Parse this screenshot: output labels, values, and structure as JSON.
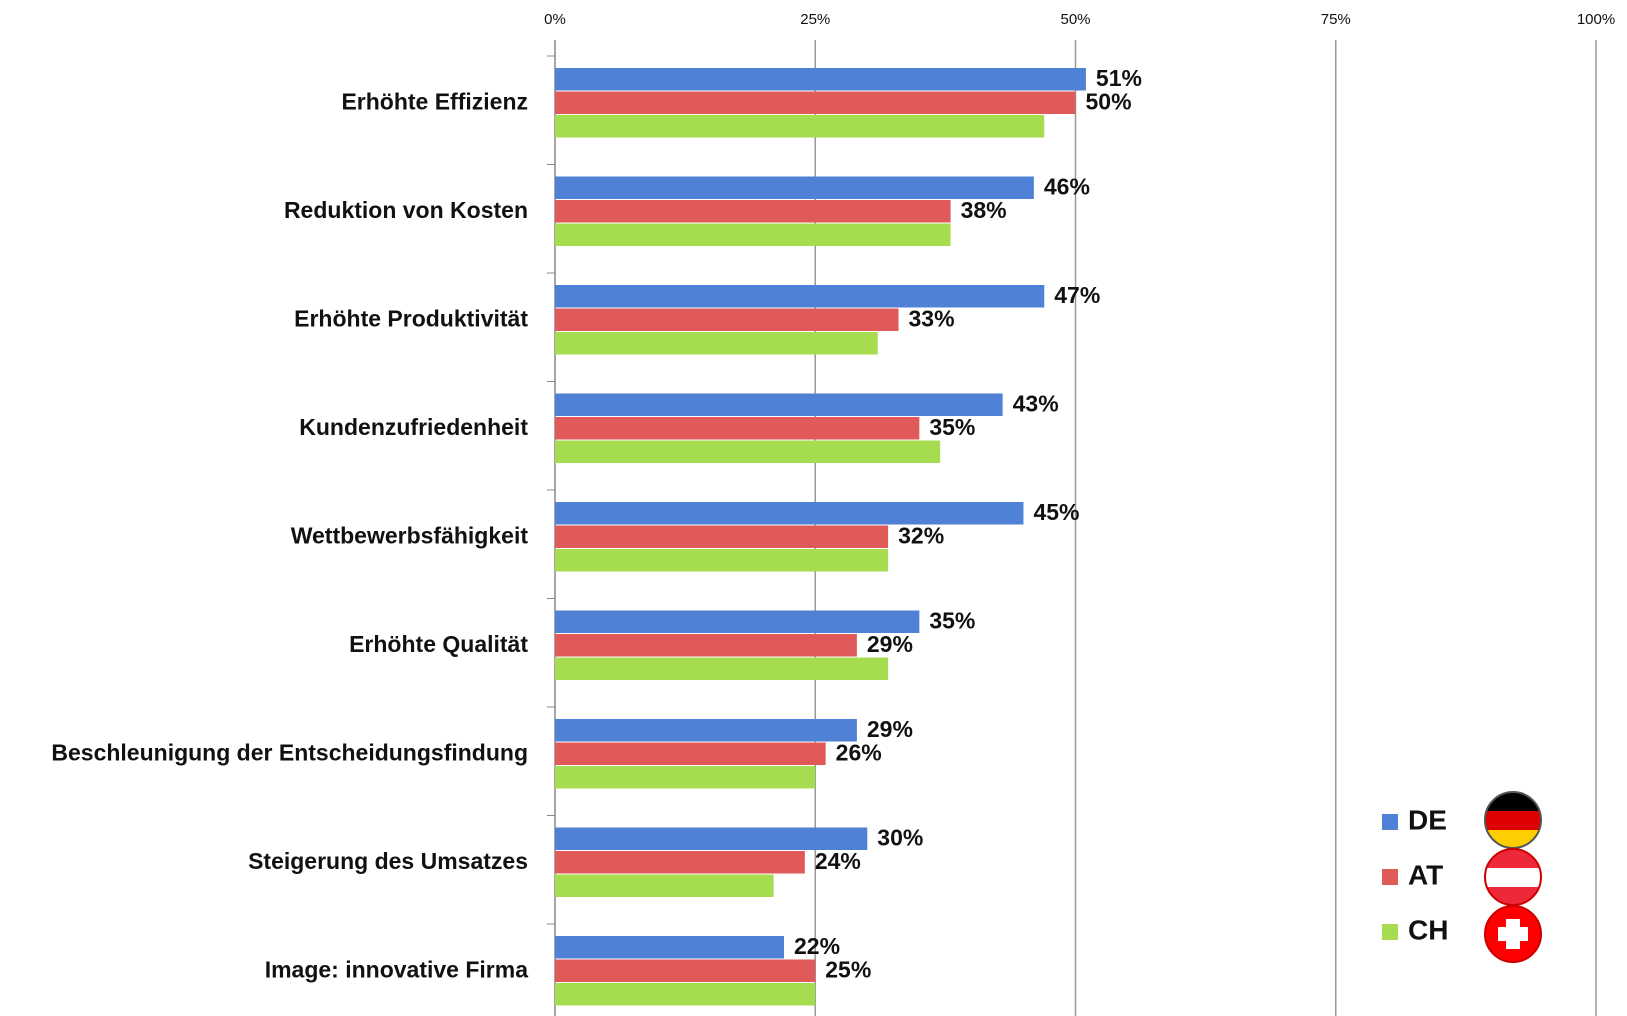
{
  "chart_data": {
    "type": "bar",
    "orientation": "horizontal",
    "categories": [
      "Erhöhte Effizienz",
      "Reduktion von Kosten",
      "Erhöhte Produktivität",
      "Kundenzufriedenheit",
      "Wettbewerbsfähigkeit",
      "Erhöhte Qualität",
      "Beschleunigung der Entscheidungsfindung",
      "Steigerung des Umsatzes",
      "Image: innovative Firma"
    ],
    "series": [
      {
        "name": "DE",
        "color": "#4f81d6",
        "values": [
          51,
          46,
          47,
          43,
          45,
          35,
          29,
          30,
          22
        ],
        "value_labels": [
          "51%",
          "46%",
          "47%",
          "43%",
          "45%",
          "35%",
          "29%",
          "30%",
          "22%"
        ]
      },
      {
        "name": "AT",
        "color": "#e05a5a",
        "values": [
          50,
          38,
          33,
          35,
          32,
          29,
          26,
          24,
          25
        ],
        "value_labels": [
          "50%",
          "38%",
          "33%",
          "35%",
          "32%",
          "29%",
          "26%",
          "24%",
          "25%"
        ]
      },
      {
        "name": "CH",
        "color": "#a6dc50",
        "values": [
          47,
          38,
          31,
          37,
          32,
          32,
          25,
          21,
          25
        ]
      }
    ],
    "xlim": [
      0,
      100
    ],
    "xticks": [
      {
        "value": 0,
        "label": "0%"
      },
      {
        "value": 25,
        "label": "25%"
      },
      {
        "value": 50,
        "label": "50%"
      },
      {
        "value": 75,
        "label": "75%"
      },
      {
        "value": 100,
        "label": "100%"
      }
    ],
    "grid": true,
    "legend": "lower right"
  }
}
